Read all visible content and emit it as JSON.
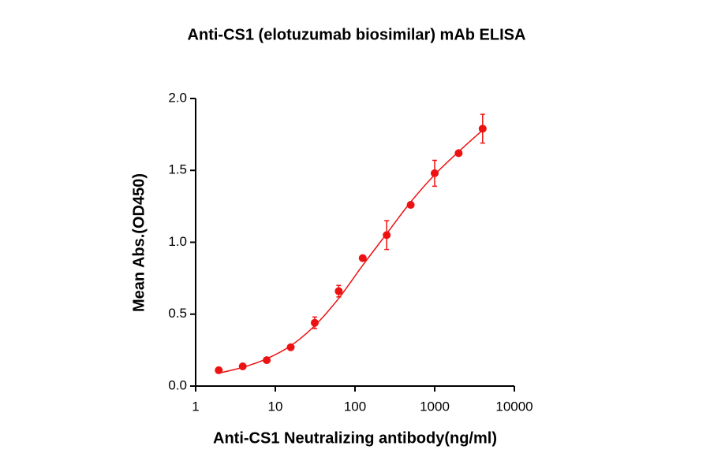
{
  "chart_data": {
    "type": "scatter",
    "title": "Anti-CS1 (elotuzumab biosimilar) mAb ELISA",
    "x_label": "Anti-CS1 Neutralizing antibody(ng/ml)",
    "y_label": "Mean Abs.(OD450)",
    "x_scale": "log",
    "x": [
      1.95,
      3.9,
      7.8,
      15.6,
      31.25,
      62.5,
      125,
      250,
      500,
      1000,
      2000,
      4000
    ],
    "values": [
      0.11,
      0.137,
      0.18,
      0.27,
      0.44,
      0.66,
      0.89,
      1.05,
      1.26,
      1.48,
      1.62,
      1.79
    ],
    "errors": [
      0.01,
      0.01,
      0.01,
      0.01,
      0.04,
      0.04,
      0.01,
      0.1,
      0.01,
      0.09,
      0.01,
      0.1
    ],
    "color": "#ee1111",
    "curve": {
      "x": [
        1.95,
        3.9,
        7.8,
        15.6,
        31.25,
        62.5,
        125,
        250,
        500,
        1000,
        2000,
        4000
      ],
      "values": [
        0.09,
        0.13,
        0.19,
        0.28,
        0.42,
        0.61,
        0.84,
        1.06,
        1.28,
        1.47,
        1.63,
        1.78
      ]
    },
    "xlim": [
      1,
      10000
    ],
    "xticks": [
      1,
      10,
      100,
      1000,
      10000
    ],
    "ylim": [
      0,
      2
    ],
    "yticks": [
      {
        "value": 0,
        "label": "0.0"
      },
      {
        "value": 0.5,
        "label": "0.5"
      },
      {
        "value": 1,
        "label": "1.0"
      },
      {
        "value": 1.5,
        "label": "1.5"
      },
      {
        "value": 2,
        "label": "2.0"
      }
    ]
  }
}
